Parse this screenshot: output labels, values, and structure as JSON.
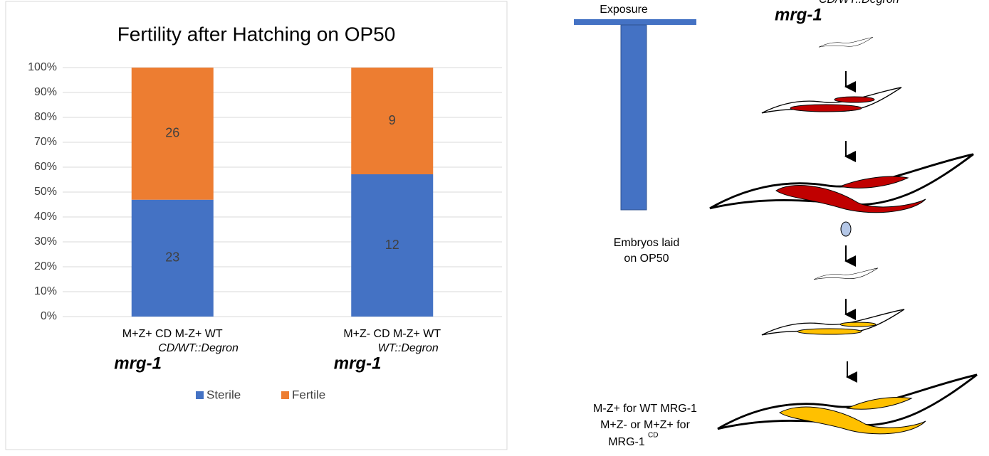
{
  "chart_data": {
    "type": "bar",
    "stacking": "percent",
    "title": "Fertility after Hatching on OP50",
    "categories": [
      "M+Z+ CD M-Z+ WT",
      "M+Z- CD M-Z+ WT"
    ],
    "category_genotypes": [
      {
        "name": "mrg-1",
        "sup": "CD/WT::Degron"
      },
      {
        "name": "mrg-1",
        "sup": "WT::Degron"
      }
    ],
    "series": [
      {
        "name": "Sterile",
        "color": "#4472c4",
        "values": [
          23,
          12
        ]
      },
      {
        "name": "Fertile",
        "color": "#ed7d31",
        "values": [
          26,
          9
        ]
      }
    ],
    "ylim": [
      0,
      100
    ],
    "yticks": [
      {
        "value": 0,
        "label": "0%"
      },
      {
        "value": 10,
        "label": "10%"
      },
      {
        "value": 20,
        "label": "20%"
      },
      {
        "value": 30,
        "label": "30%"
      },
      {
        "value": 40,
        "label": "40%"
      },
      {
        "value": 50,
        "label": "50%"
      },
      {
        "value": 60,
        "label": "60%"
      },
      {
        "value": 70,
        "label": "70%"
      },
      {
        "value": 80,
        "label": "80%"
      },
      {
        "value": 90,
        "label": "90%"
      },
      {
        "value": 100,
        "label": "100%"
      }
    ],
    "grid": true,
    "legend": "bottom"
  },
  "diagram": {
    "exposure_label": "Exposure",
    "genotype": {
      "name": "mrg-1",
      "sup": "CD/WT::Degron"
    },
    "embryos_label": [
      "Embryos laid",
      "on OP50"
    ],
    "outcome_label": [
      "M-Z+ for WT MRG-1",
      "M+Z- or M+Z+ for",
      "MRG-1"
    ],
    "outcome_sup": "CD"
  }
}
